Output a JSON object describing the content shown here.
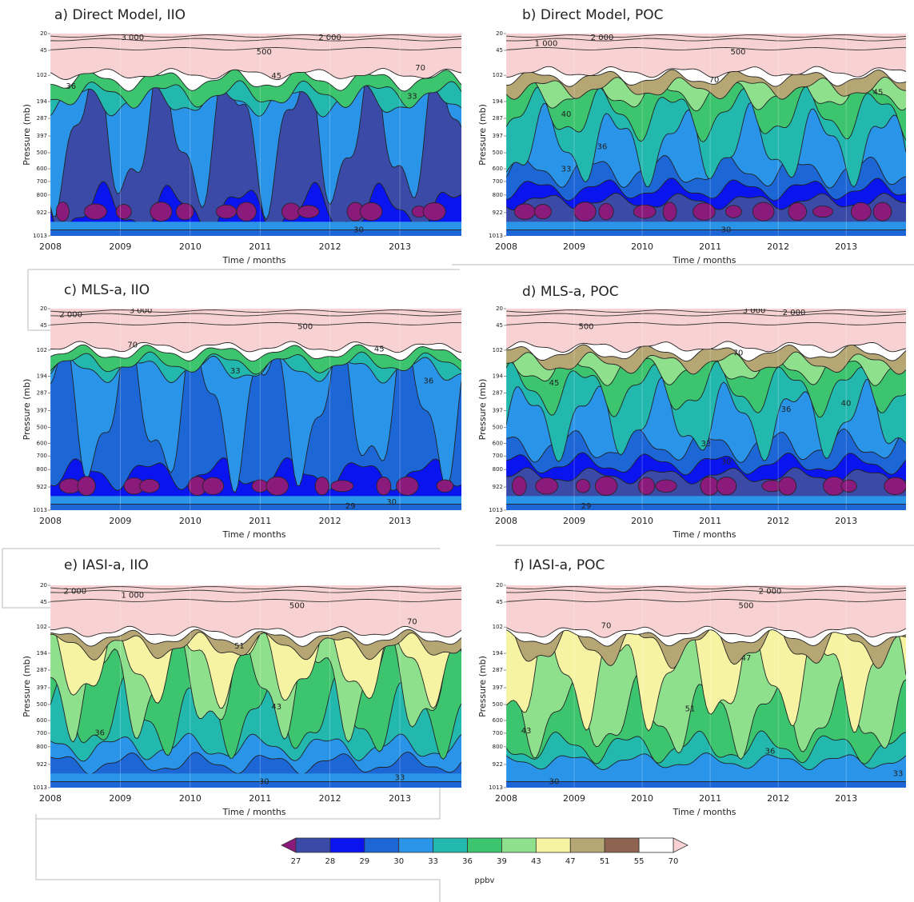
{
  "axes": {
    "yticks": [
      20,
      45,
      102,
      194,
      287,
      397,
      500,
      600,
      700,
      800,
      922,
      1013
    ],
    "xticks": [
      2008,
      2009,
      2010,
      2011,
      2012,
      2013
    ],
    "xlim": [
      2008,
      2013.88
    ]
  },
  "panels": [
    {
      "title": "a) Direct Model, IIO",
      "xlabel": "Time / months",
      "ylabel": "Pressure (mb)",
      "contour_labels": [
        "3 000",
        "2 000",
        "500",
        "70",
        "45",
        "36",
        "33",
        "30"
      ]
    },
    {
      "title": "b) Direct Model, POC",
      "xlabel": "Time / months",
      "ylabel": "Pressure (mb)",
      "contour_labels": [
        "1 000",
        "2 000",
        "500",
        "70",
        "45",
        "40",
        "36",
        "33",
        "30"
      ]
    },
    {
      "title": "c) MLS-a, IIO",
      "xlabel": "Time / months",
      "ylabel": "Pressure (mb)",
      "contour_labels": [
        "2 000",
        "3 000",
        "500",
        "70",
        "45",
        "33",
        "36",
        "30",
        "29"
      ]
    },
    {
      "title": "d) MLS-a, POC",
      "xlabel": "Time / months",
      "ylabel": "Pressure (mb)",
      "contour_labels": [
        "3 000",
        "2 000",
        "500",
        "70",
        "45",
        "40",
        "36",
        "33",
        "30",
        "29"
      ]
    },
    {
      "title": "e) IASI-a, IIO",
      "xlabel": "Time / months",
      "ylabel": "Pressure (mb)",
      "contour_labels": [
        "2 000",
        "1 000",
        "500",
        "70",
        "51",
        "43",
        "36",
        "33",
        "30"
      ]
    },
    {
      "title": "f) IASI-a, POC",
      "xlabel": "Time / months",
      "ylabel": "Pressure (mb)",
      "contour_labels": [
        "2 000",
        "500",
        "70",
        "47",
        "51",
        "43",
        "36",
        "33",
        "30"
      ]
    }
  ],
  "colorbar": {
    "levels": [
      27,
      28,
      29,
      30,
      33,
      36,
      39,
      43,
      47,
      51,
      55,
      70
    ],
    "colors": [
      "#3a4aa6",
      "#0a14ee",
      "#1c66d6",
      "#2a94e8",
      "#22b8ae",
      "#3cc46e",
      "#8ee08c",
      "#f6f4a2",
      "#b6a674",
      "#8e6450",
      "#ffffff"
    ],
    "under_color": "#8a1a7c",
    "over_color": "#f8d2d2",
    "label": "ppbv"
  }
}
